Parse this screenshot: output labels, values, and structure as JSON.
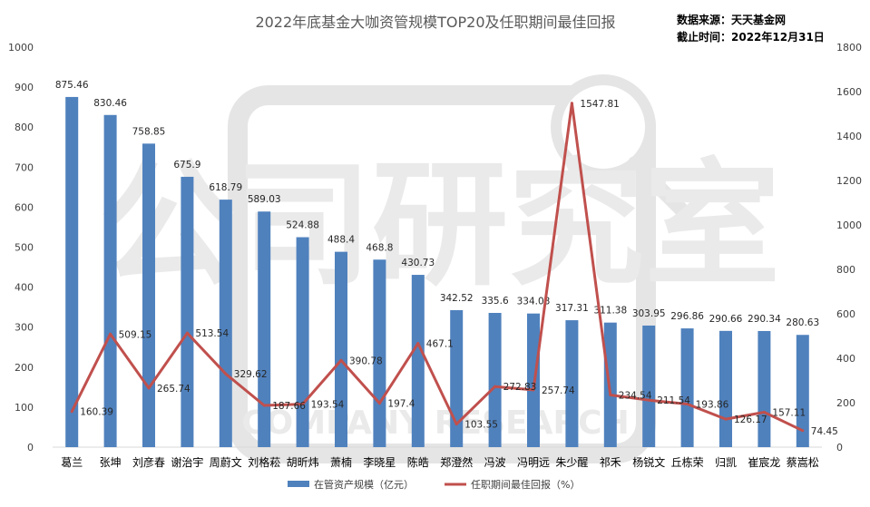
{
  "chart_data": {
    "type": "bar",
    "title": "2022年底基金大咖资管规模TOP20及任职期间最佳回报",
    "source_lines": [
      "数据来源：天天基金网",
      "截止时间：2022年12月31日"
    ],
    "categories": [
      "葛兰",
      "张坤",
      "刘彦春",
      "谢治宇",
      "周蔚文",
      "刘格菘",
      "胡昕炜",
      "萧楠",
      "李晓星",
      "陈皓",
      "郑澄然",
      "冯波",
      "冯明远",
      "朱少醒",
      "祁禾",
      "杨锐文",
      "丘栋荣",
      "归凯",
      "崔宸龙",
      "蔡嵩松"
    ],
    "series": [
      {
        "name": "在管资产规模（亿元）",
        "type": "bar",
        "axis": "left",
        "color": "#4f81bd",
        "values": [
          875.46,
          830.46,
          758.85,
          675.9,
          618.79,
          589.03,
          524.88,
          488.4,
          468.8,
          430.73,
          342.52,
          335.6,
          334.08,
          317.31,
          311.38,
          303.95,
          296.86,
          290.66,
          290.34,
          280.63
        ],
        "labels": [
          "875.46",
          "830.46",
          "758.85",
          "675.9",
          "618.79",
          "589.03",
          "524.88",
          "488.4",
          "468.8",
          "430.73",
          "342.52",
          "335.6",
          "334.08",
          "317.31",
          "311.38",
          "303.95",
          "296.86",
          "290.66",
          "290.34",
          "280.63"
        ]
      },
      {
        "name": "任职期间最佳回报（%）",
        "type": "line",
        "axis": "right",
        "color": "#c0504d",
        "values": [
          160.39,
          509.15,
          265.74,
          513.54,
          329.62,
          187.66,
          193.54,
          390.78,
          197.4,
          467.1,
          103.55,
          272.83,
          257.74,
          1547.81,
          234.54,
          211.54,
          193.86,
          126.17,
          157.11,
          74.45
        ],
        "labels": [
          "160.39",
          "509.15",
          "265.74",
          "513.54",
          "329.62",
          "187.66",
          "193.54",
          "390.78",
          "197.4",
          "467.1",
          "103.55",
          "272.83",
          "257.74",
          "1547.81",
          "234.54",
          "211.54",
          "193.86",
          "126.17",
          "157.11",
          "74.45"
        ]
      }
    ],
    "y_left": {
      "min": 0,
      "max": 1000,
      "step": 100,
      "ticks": [
        "0",
        "100",
        "200",
        "300",
        "400",
        "500",
        "600",
        "700",
        "800",
        "900",
        "1000"
      ]
    },
    "y_right": {
      "min": 0,
      "max": 1800,
      "step": 200,
      "ticks": [
        "0",
        "200",
        "400",
        "600",
        "800",
        "1000",
        "1200",
        "1400",
        "1600",
        "1800"
      ]
    },
    "grid": false,
    "legend_position": "bottom",
    "watermark": {
      "text": "公司研究室",
      "subtext": "COMPANY RESEARCH",
      "color": "#d9d9d9"
    }
  }
}
